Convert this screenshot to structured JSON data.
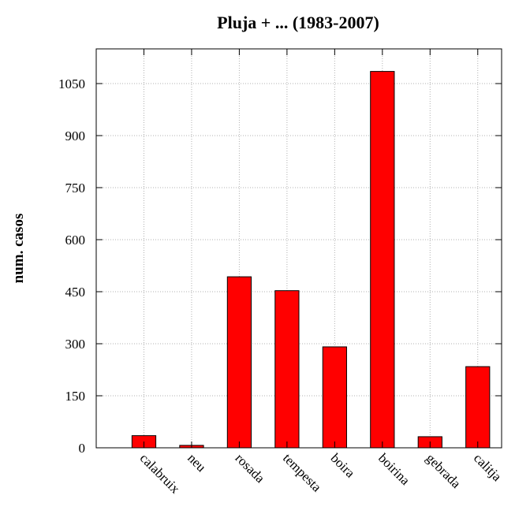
{
  "chart_data": {
    "type": "bar",
    "title": "Pluja + ... (1983-2007)",
    "xlabel": "",
    "ylabel": "num. casos",
    "categories": [
      "calabruix",
      "neu",
      "rosada",
      "tempesta",
      "boira",
      "boirina",
      "gebrada",
      "calitja"
    ],
    "values": [
      35,
      7,
      493,
      453,
      291,
      1085,
      32,
      234
    ],
    "ylim": [
      0,
      1150
    ],
    "yticks": [
      0,
      150,
      300,
      450,
      600,
      750,
      900,
      1050
    ],
    "grid": true,
    "bar_color": "#ff0000",
    "legend": "none"
  }
}
